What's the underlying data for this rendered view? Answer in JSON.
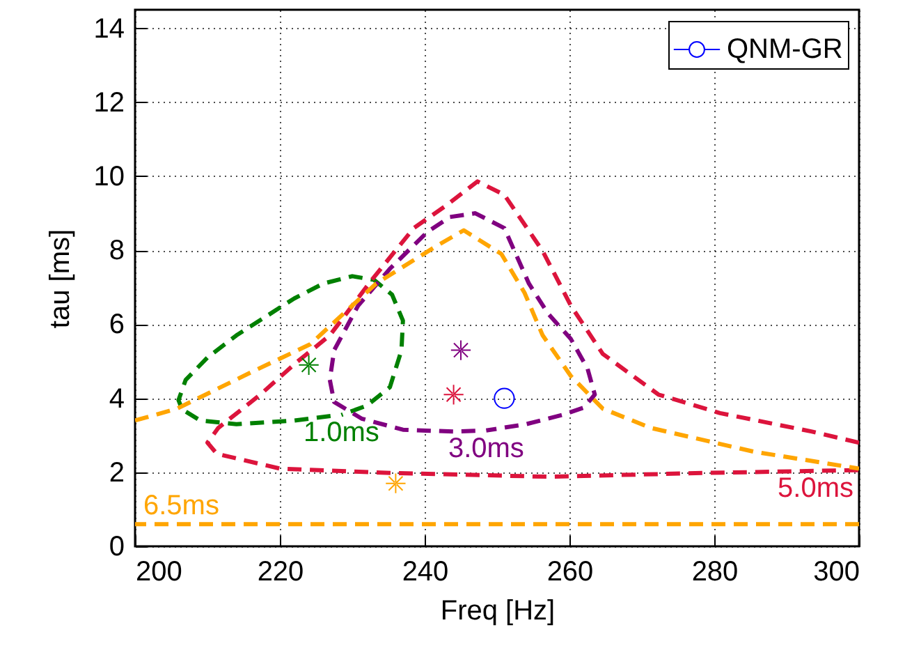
{
  "chart_data": {
    "type": "line",
    "xlabel": "Freq [Hz]",
    "ylabel": "tau [ms]",
    "xlim": [
      200,
      300
    ],
    "ylim": [
      0,
      14.5
    ],
    "xticks": [
      200,
      220,
      240,
      260,
      280,
      300
    ],
    "yticks": [
      0,
      2,
      4,
      6,
      8,
      10,
      12,
      14
    ],
    "grid": true,
    "legend": "top right",
    "series": [
      {
        "name": "1.0ms",
        "type": "line",
        "line_style": "dashed",
        "color": "#008000",
        "x": [
          227,
          222,
          214,
          209,
          206.5,
          206,
          207,
          210,
          214,
          218,
          222,
          226,
          230,
          233,
          235.5,
          237,
          236.8,
          235.2,
          232,
          228.5
        ],
        "values": [
          3.52,
          3.4,
          3.3,
          3.4,
          3.7,
          3.95,
          4.5,
          5.1,
          5.7,
          6.2,
          6.7,
          7.1,
          7.3,
          7.2,
          6.8,
          6.1,
          5.3,
          4.3,
          3.8,
          3.55
        ]
      },
      {
        "name": "3.0ms",
        "type": "line",
        "line_style": "dashed",
        "color": "#800080",
        "x": [
          247,
          244,
          237,
          231.3,
          227.5,
          226.9,
          227.5,
          230.8,
          235.2,
          240.4,
          243.5,
          247,
          251,
          254.4,
          257,
          260.2,
          262.5,
          263.5,
          262,
          259,
          254,
          248.5
        ],
        "values": [
          3.12,
          3.1,
          3.15,
          3.45,
          3.9,
          4.5,
          5.3,
          6.5,
          7.5,
          8.5,
          8.9,
          9.0,
          8.6,
          7.1,
          6.3,
          5.6,
          4.8,
          4.1,
          3.75,
          3.55,
          3.3,
          3.13
        ]
      },
      {
        "name": "5.0ms",
        "type": "line",
        "line_style": "dashed",
        "color": "#dc143c",
        "x": [
          300,
          293.5,
          280.8,
          272.3,
          264.6,
          260.2,
          256.3,
          251,
          247.3,
          242.9,
          238.5,
          232.7,
          226.9,
          222.3,
          217.3,
          211.5,
          210,
          211.3,
          220,
          235.6,
          257,
          278.3,
          300
        ],
        "values": [
          2.8,
          3.1,
          3.6,
          4.1,
          5.2,
          6.5,
          7.98,
          9.5,
          9.86,
          9.2,
          8.6,
          7.2,
          5.7,
          4.97,
          4.1,
          3.2,
          2.8,
          2.5,
          2.1,
          1.98,
          1.88,
          1.98,
          2.06
        ]
      },
      {
        "type": "line",
        "line_style": "dashed",
        "color": "#ffa500",
        "x": [
          200,
          205.8,
          216,
          224.2,
          233.3,
          241.5,
          245.4,
          250.6,
          253.8,
          256.3,
          260.2,
          264.6,
          271.2,
          285.4,
          300
        ],
        "values": [
          3.4,
          3.72,
          4.7,
          5.46,
          7.1,
          8.1,
          8.54,
          7.9,
          6.85,
          5.7,
          4.6,
          3.72,
          3.2,
          2.56,
          2.1
        ]
      },
      {
        "name": "6.5ms",
        "type": "line",
        "line_style": "dashed",
        "color": "#ffa500",
        "x": [
          300,
          250,
          200
        ],
        "values": [
          0.6,
          0.6,
          0.6
        ]
      },
      {
        "type": "scatter",
        "marker": "star",
        "color": "#008000",
        "x": [
          224
        ],
        "values": [
          4.9
        ]
      },
      {
        "type": "scatter",
        "marker": "star",
        "color": "#800080",
        "x": [
          245
        ],
        "values": [
          5.3
        ]
      },
      {
        "type": "scatter",
        "marker": "star",
        "color": "#dc143c",
        "x": [
          244
        ],
        "values": [
          4.1
        ]
      },
      {
        "type": "scatter",
        "marker": "star",
        "color": "#ffa500",
        "x": [
          236
        ],
        "values": [
          1.7
        ]
      },
      {
        "name": "QNM-GR",
        "type": "scatter",
        "marker": "circle",
        "color": "#0000ff",
        "x": [
          251
        ],
        "values": [
          4.0
        ]
      }
    ]
  }
}
